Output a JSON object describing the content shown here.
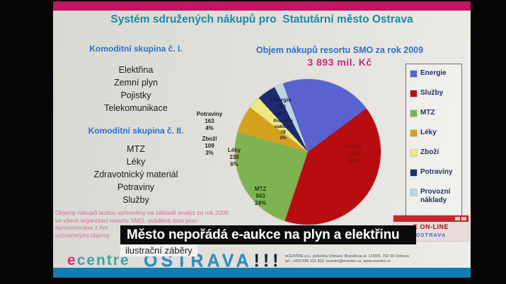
{
  "slide": {
    "title": "Systém sdružených nákupů pro  Statutární město Ostrava",
    "left_panel": {
      "group1_heading": "Komoditní skupina č. I.",
      "group1_items": [
        "Elektřina",
        "Zemní plyn",
        "Pojistky",
        "Telekomunikace"
      ],
      "group2_heading": "Komoditní skupina č. II.",
      "group2_items": [
        "MTZ",
        "Léky",
        "Zdravotnický materiál",
        "Potraviny",
        "Služby"
      ]
    },
    "footnote_lines": [
      "Objemy nákupů budou upřesněny na základě analýz za rok 2009",
      "ve všech organizací resortu SMO, uváděná data jsou",
      "aproximována z Am",
      "významnými objemy"
    ],
    "footer": {
      "logo_e": "e",
      "logo_rest": "centre",
      "ostrava": "OSTRAVA",
      "bangs": "!!!",
      "contact_line1": "eCENTRE a.s., pobočka Ostrava: Brandlova ul. 1243/9, 702 00 Ostrava",
      "contact_line2": "tel.: +420 595 151 802, ecentre@ecentre.cz, www.ecentre.cz"
    }
  },
  "chart_data": {
    "type": "pie",
    "title": "Objem nákupů resortu SMO za rok 2009",
    "subtitle": "3 893 mil. Kč",
    "total": 3893,
    "unit": "mil. Kč",
    "start_angle_deg": -20,
    "legend_position": "right",
    "slices": [
      {
        "label": "Energie",
        "value": 793,
        "value_display": "793",
        "pct": "20%",
        "color": "#5863cf"
      },
      {
        "label": "Služby",
        "value": 1569,
        "value_display": "1 569",
        "pct": "40%",
        "color": "#b80d10"
      },
      {
        "label": "MTZ",
        "value": 943,
        "value_display": "943",
        "pct": "24%",
        "color": "#7db350"
      },
      {
        "label": "Léky",
        "value": 238,
        "value_display": "238",
        "pct": "6%",
        "color": "#d6a01f"
      },
      {
        "label": "Zboží",
        "value": 109,
        "value_display": "109",
        "pct": "3%",
        "color": "#ece87d"
      },
      {
        "label": "Potraviny",
        "value": 163,
        "value_display": "163",
        "pct": "4%",
        "color": "#202a6e"
      },
      {
        "label": "Provozní náklady",
        "value": 78,
        "value_display": "78",
        "pct": "2%",
        "color": "#bcd6e2"
      }
    ]
  },
  "caption": {
    "headline": "Město nepořádá e-aukce na plyn a elektřinu",
    "subline": "ilustrační záběry"
  },
  "online_badge": {
    "line1": "E ON-LINE",
    "line2": "OSTRAVA"
  }
}
